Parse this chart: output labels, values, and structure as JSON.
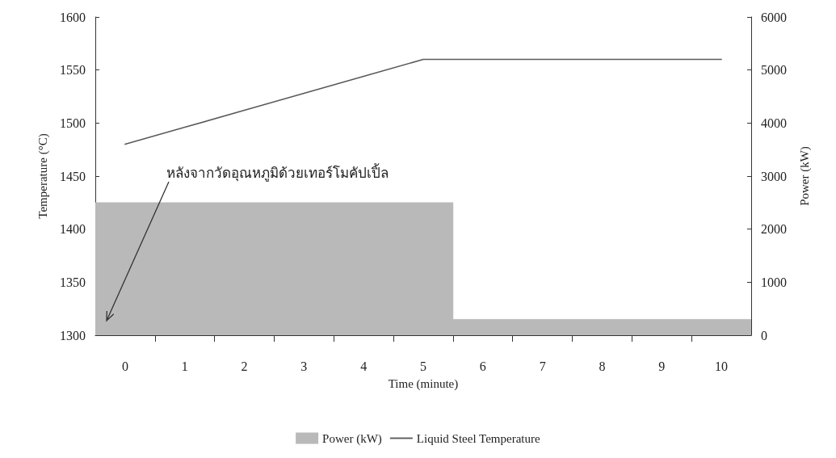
{
  "chart_data": {
    "type": "line",
    "xlabel": "Time (minute)",
    "ylabel": "Temperature (°C)",
    "y2label": "Power (kW)",
    "x": [
      0,
      1,
      2,
      3,
      4,
      5,
      6,
      7,
      8,
      9,
      10
    ],
    "series": [
      {
        "name": "Power (kW)",
        "type": "area",
        "axis": "y2",
        "color": "#b9b9b9",
        "x": [
          -0.5,
          5.5,
          5.5,
          10.5
        ],
        "values": [
          2500,
          2500,
          300,
          300
        ]
      },
      {
        "name": "Liquid Steel Temperature",
        "color": "#5a5a5a",
        "values": [
          1480,
          1496,
          1512,
          1528,
          1544,
          1560,
          1560,
          1560,
          1560,
          1560,
          1560
        ]
      }
    ],
    "xlim": [
      -0.5,
      10.5
    ],
    "xticks": [
      0,
      1,
      2,
      3,
      4,
      5,
      6,
      7,
      8,
      9,
      10
    ],
    "ylim": [
      1300,
      1600
    ],
    "yticks": [
      1300,
      1350,
      1400,
      1450,
      1500,
      1550,
      1600
    ],
    "y2lim": [
      0,
      6000
    ],
    "y2ticks": [
      0,
      1000,
      2000,
      3000,
      4000,
      5000,
      6000
    ],
    "annotations": [
      "หลังจากวัดอุณหภูมิด้วยเทอร์โมคัปเปิ้ล"
    ],
    "legend": "bottom",
    "grid": false,
    "marker": "none",
    "line_style": "solid"
  }
}
